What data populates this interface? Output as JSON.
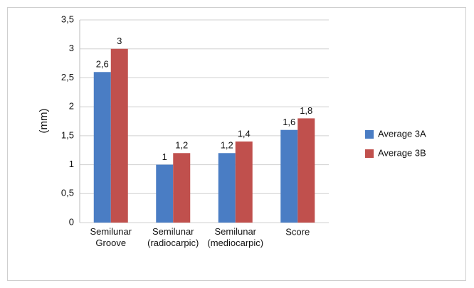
{
  "chart_data": {
    "type": "bar",
    "y_label": "(mm)",
    "categories": [
      "Semilunar\nGroove",
      "Semilunar\n(radiocarpic)",
      "Semilunar\n(mediocarpic)",
      "Score"
    ],
    "series": [
      {
        "name": "Average 3A",
        "color": "#4a7dc4",
        "values": [
          2.6,
          1,
          1.2,
          1.6
        ],
        "value_labels": [
          "2,6",
          "1",
          "1,2",
          "1,6"
        ]
      },
      {
        "name": "Average 3B",
        "color": "#c0504d",
        "values": [
          3,
          1.2,
          1.4,
          1.8
        ],
        "value_labels": [
          "3",
          "1,2",
          "1,4",
          "1,8"
        ]
      }
    ],
    "ylim": [
      0,
      3.5
    ],
    "yticks": [
      0,
      {
        "value": 0.5,
        "label": "0,5"
      },
      1,
      {
        "value": 1.5,
        "label": "1,5"
      },
      2,
      {
        "value": 2.5,
        "label": "2,5"
      },
      3,
      {
        "value": 3.5,
        "label": "3,5"
      }
    ],
    "grid": true,
    "legend": "right"
  }
}
